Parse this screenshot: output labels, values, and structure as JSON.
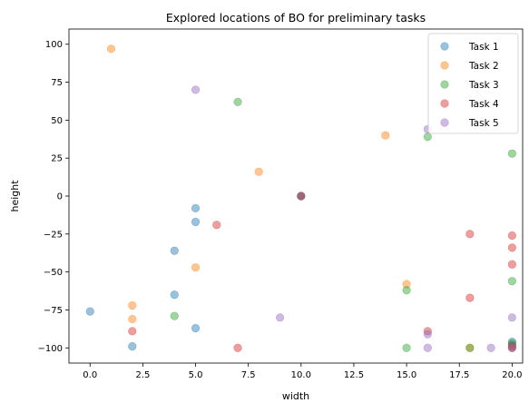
{
  "chart_data": {
    "type": "scatter",
    "title": "Explored locations of BO for preliminary tasks",
    "xlabel": "width",
    "ylabel": "height",
    "xlim": [
      -1,
      20.5
    ],
    "ylim": [
      -110,
      110
    ],
    "x_ticks": [
      "0.0",
      "2.5",
      "5.0",
      "7.5",
      "10.0",
      "12.5",
      "15.0",
      "17.5",
      "20.0"
    ],
    "y_ticks": [
      "100",
      "75",
      "50",
      "25",
      "0",
      "−25",
      "−50",
      "−75",
      "−100"
    ],
    "grid": false,
    "legend_position": "top-right",
    "series": [
      {
        "name": "Task 1",
        "color": "#1f77b4",
        "points": [
          [
            0,
            -76
          ],
          [
            2,
            -99
          ],
          [
            4,
            -36
          ],
          [
            4,
            -65
          ],
          [
            5,
            -8
          ],
          [
            5,
            -17
          ],
          [
            5,
            -87
          ],
          [
            10,
            0
          ],
          [
            20,
            -96
          ],
          [
            20,
            -98
          ],
          [
            20,
            -100
          ]
        ]
      },
      {
        "name": "Task 2",
        "color": "#ff7f0e",
        "points": [
          [
            1,
            97
          ],
          [
            2,
            -72
          ],
          [
            2,
            -81
          ],
          [
            5,
            -47
          ],
          [
            8,
            16
          ],
          [
            10,
            0
          ],
          [
            14,
            40
          ],
          [
            15,
            -58
          ],
          [
            18,
            -100
          ],
          [
            20,
            -100
          ]
        ]
      },
      {
        "name": "Task 3",
        "color": "#2ca02c",
        "points": [
          [
            4,
            -79
          ],
          [
            7,
            62
          ],
          [
            10,
            0
          ],
          [
            15,
            -62
          ],
          [
            15,
            -100
          ],
          [
            16,
            39
          ],
          [
            18,
            -100
          ],
          [
            20,
            28
          ],
          [
            20,
            -56
          ],
          [
            20,
            -97
          ]
        ]
      },
      {
        "name": "Task 4",
        "color": "#d62728",
        "points": [
          [
            2,
            -89
          ],
          [
            6,
            -19
          ],
          [
            7,
            -100
          ],
          [
            10,
            0
          ],
          [
            16,
            -89
          ],
          [
            18,
            -25
          ],
          [
            18,
            -67
          ],
          [
            20,
            -26
          ],
          [
            20,
            -34
          ],
          [
            20,
            -45
          ],
          [
            20,
            -99
          ]
        ]
      },
      {
        "name": "Task 5",
        "color": "#9467bd",
        "points": [
          [
            5,
            70
          ],
          [
            9,
            -80
          ],
          [
            10,
            0
          ],
          [
            16,
            44
          ],
          [
            16,
            -91
          ],
          [
            16,
            -100
          ],
          [
            19,
            -100
          ],
          [
            20,
            -80
          ],
          [
            20,
            -100
          ]
        ]
      }
    ]
  }
}
